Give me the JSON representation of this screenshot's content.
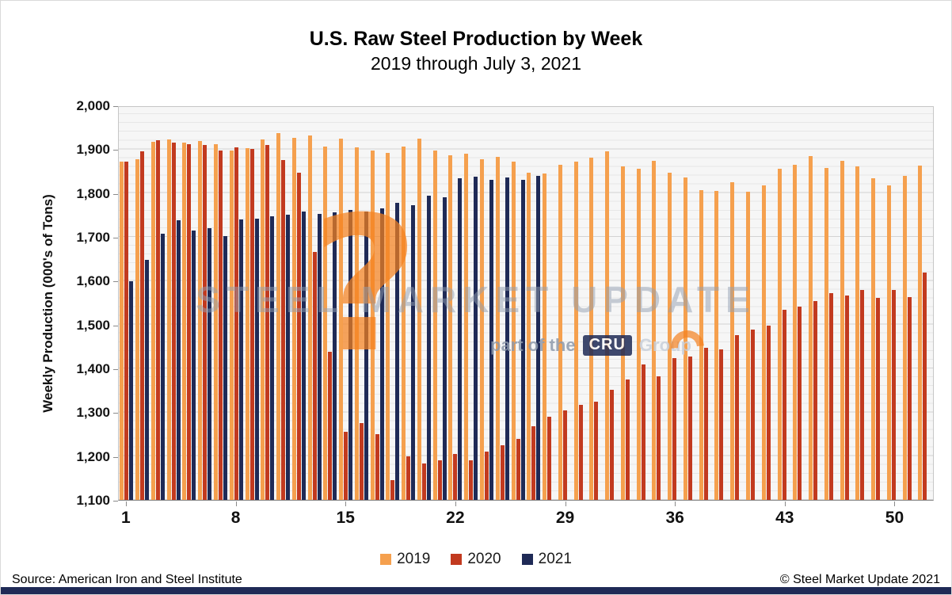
{
  "header": {
    "title": "U.S. Raw Steel Production by Week",
    "subtitle": "2019 through July 3, 2021"
  },
  "footer": {
    "source": "Source: American Iron and Steel Institute",
    "copyright": "© Steel Market Update 2021"
  },
  "watermark": {
    "question_mark": "?",
    "brand": "STEEL MARKET UPDATE",
    "tagline_prefix": "part of the",
    "tagline_badge": "CRU",
    "tagline_suffix": "Group"
  },
  "chart_data": {
    "type": "bar",
    "title": "U.S. Raw Steel Production by Week",
    "subtitle": "2019 through July 3, 2021",
    "xlabel": "",
    "ylabel": "Weekly Production (000's of Tons)",
    "ylim": [
      1100,
      2000
    ],
    "ytick_step": 100,
    "y_tick_labels": [
      "1,100",
      "1,200",
      "1,300",
      "1,400",
      "1,500",
      "1,600",
      "1,700",
      "1,800",
      "1,900",
      "2,000"
    ],
    "x_tick_weeks": [
      1,
      8,
      15,
      22,
      29,
      36,
      43,
      50
    ],
    "grid": "horizontal-major-every-100-minor-every-20",
    "legend_position": "bottom",
    "categories": [
      1,
      2,
      3,
      4,
      5,
      6,
      7,
      8,
      9,
      10,
      11,
      12,
      13,
      14,
      15,
      16,
      17,
      18,
      19,
      20,
      21,
      22,
      23,
      24,
      25,
      26,
      27,
      28,
      29,
      30,
      31,
      32,
      33,
      34,
      35,
      36,
      37,
      38,
      39,
      40,
      41,
      42,
      43,
      44,
      45,
      46,
      47,
      48,
      49,
      50,
      51,
      52
    ],
    "series": [
      {
        "name": "2019",
        "color": "#F5A04E",
        "values": [
          1875,
          1880,
          1920,
          1925,
          1918,
          1922,
          1915,
          1900,
          1905,
          1925,
          1940,
          1930,
          1935,
          1910,
          1928,
          1908,
          1900,
          1895,
          1910,
          1928,
          1900,
          1890,
          1893,
          1880,
          1886,
          1875,
          1850,
          1848,
          1868,
          1875,
          1884,
          1898,
          1864,
          1858,
          1877,
          1850,
          1838,
          1810,
          1808,
          1828,
          1805,
          1820,
          1858,
          1868,
          1888,
          1860,
          1877,
          1864,
          1837,
          1820,
          1843,
          1865
        ]
      },
      {
        "name": "2020",
        "color": "#C23A1F",
        "values": [
          1875,
          1898,
          1923,
          1918,
          1915,
          1913,
          1900,
          1908,
          1903,
          1913,
          1878,
          1850,
          1668,
          1440,
          1256,
          1276,
          1250,
          1145,
          1200,
          1183,
          1190,
          1205,
          1190,
          1210,
          1225,
          1240,
          1268,
          1290,
          1305,
          1318,
          1325,
          1353,
          1375,
          1410,
          1383,
          1424,
          1428,
          1448,
          1445,
          1478,
          1490,
          1500,
          1535,
          1543,
          1556,
          1574,
          1568,
          1580,
          1562,
          1580,
          1565,
          1620
        ]
      },
      {
        "name": "2021",
        "color": "#1F2A56",
        "values": [
          1600,
          1650,
          1710,
          1740,
          1717,
          1723,
          1705,
          1743,
          1745,
          1750,
          1753,
          1760,
          1755,
          1758,
          1765,
          1760,
          1768,
          1780,
          1775,
          1797,
          1793,
          1837,
          1840,
          1833,
          1838,
          1833,
          1843,
          null,
          null,
          null,
          null,
          null,
          null,
          null,
          null,
          null,
          null,
          null,
          null,
          null,
          null,
          null,
          null,
          null,
          null,
          null,
          null,
          null,
          null,
          null,
          null,
          null
        ]
      }
    ]
  }
}
